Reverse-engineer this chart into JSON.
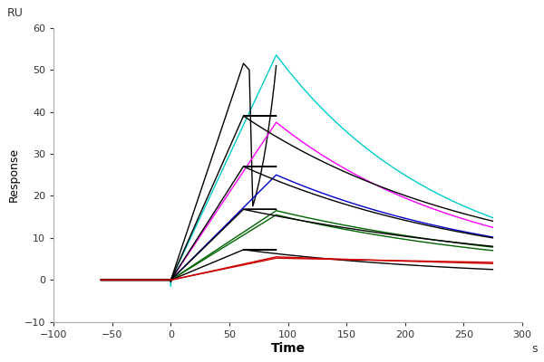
{
  "xlabel": "Time",
  "ylabel": "Response",
  "xlabel_suffix": "s",
  "ru_label": "RU",
  "xlim": [
    -100,
    300
  ],
  "ylim": [
    -10,
    60
  ],
  "xticks": [
    -100,
    -50,
    0,
    50,
    100,
    150,
    200,
    250,
    300
  ],
  "yticks": [
    -10,
    0,
    10,
    20,
    30,
    40,
    50,
    60
  ],
  "background_color": "#ffffff",
  "curves": [
    {
      "color": "#00cccc",
      "peak": 53.5,
      "assoc_start": 0,
      "assoc_end": 90,
      "dissoc_end": 275,
      "dissoc_end_val": 14.8,
      "linear_assoc": false,
      "dip_at_zero": -1.5,
      "label": "cyan_high"
    },
    {
      "color": "#000000",
      "peak": 51.5,
      "assoc_start": 0,
      "assoc_end": 62,
      "dissoc_end": 90,
      "dissoc_end_val": 51.0,
      "linear_assoc": true,
      "sharp_drop_at_end": true,
      "sharp_drop_target": 13.5,
      "sharp_drop_end": 275,
      "dip_at_zero": -0.5,
      "label": "black_high1"
    },
    {
      "color": "#ff00ff",
      "peak": 37.5,
      "assoc_start": 0,
      "assoc_end": 90,
      "dissoc_end": 275,
      "dissoc_end_val": 12.5,
      "linear_assoc": true,
      "dip_at_zero": -0.3,
      "label": "magenta_mid"
    },
    {
      "color": "#000000",
      "peak": 39.0,
      "assoc_start": 0,
      "assoc_end": 62,
      "assoc_plateau": 39.0,
      "assoc_plateau_end": 90,
      "dissoc_end": 275,
      "dissoc_end_val": 14.0,
      "linear_assoc": true,
      "dip_at_zero": -0.3,
      "label": "black_mid1"
    },
    {
      "color": "#0000cc",
      "peak": 25.0,
      "assoc_start": 0,
      "assoc_end": 90,
      "dissoc_end": 275,
      "dissoc_end_val": 10.2,
      "linear_assoc": true,
      "dip_at_zero": -0.3,
      "label": "blue_mid"
    },
    {
      "color": "#000000",
      "peak": 27.0,
      "assoc_start": 0,
      "assoc_end": 62,
      "assoc_plateau": 27.0,
      "assoc_plateau_end": 90,
      "dissoc_end": 275,
      "dissoc_end_val": 10.0,
      "linear_assoc": true,
      "dip_at_zero": -0.3,
      "label": "black_mid2"
    },
    {
      "color": "#006400",
      "peak": 16.5,
      "assoc_start": 0,
      "assoc_end": 90,
      "dissoc_end": 275,
      "dissoc_end_val": 7.8,
      "linear_assoc": true,
      "dip_at_zero": -0.2,
      "label": "darkgreen_low1"
    },
    {
      "color": "#006400",
      "peak": 15.5,
      "assoc_start": 0,
      "assoc_end": 90,
      "dissoc_end": 275,
      "dissoc_end_val": 7.0,
      "linear_assoc": true,
      "dip_at_zero": -0.2,
      "label": "darkgreen_low2"
    },
    {
      "color": "#000000",
      "peak": 16.8,
      "assoc_start": 0,
      "assoc_end": 62,
      "assoc_plateau": 16.8,
      "assoc_plateau_end": 90,
      "dissoc_end": 275,
      "dissoc_end_val": 8.0,
      "linear_assoc": true,
      "dip_at_zero": -0.2,
      "label": "black_low1"
    },
    {
      "color": "#000000",
      "peak": 7.2,
      "assoc_start": 0,
      "assoc_end": 62,
      "assoc_plateau": 7.2,
      "assoc_plateau_end": 90,
      "dissoc_end": 275,
      "dissoc_end_val": 2.5,
      "linear_assoc": true,
      "dip_at_zero": -0.1,
      "label": "black_vlow"
    },
    {
      "color": "#cc0000",
      "peak": 5.2,
      "assoc_start": 0,
      "assoc_end": 90,
      "dissoc_end": 275,
      "dissoc_end_val": 4.2,
      "linear_assoc": true,
      "dip_at_zero": -0.1,
      "label": "red_vlow1"
    },
    {
      "color": "#cc0000",
      "peak": 5.5,
      "assoc_start": 0,
      "assoc_end": 90,
      "dissoc_end": 275,
      "dissoc_end_val": 3.9,
      "linear_assoc": true,
      "dip_at_zero": -0.1,
      "label": "red_vlow2"
    }
  ]
}
